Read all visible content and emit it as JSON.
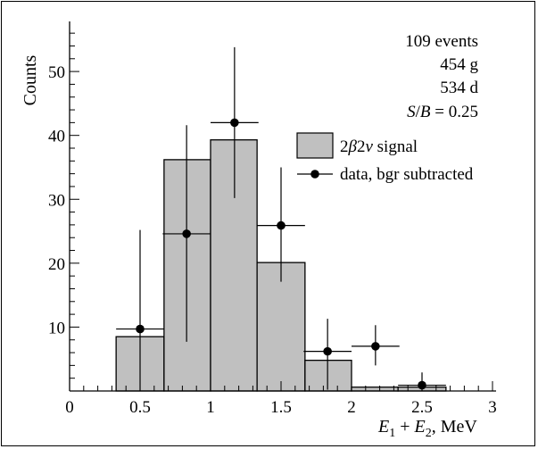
{
  "chart_data": {
    "type": "bar",
    "xlabel": "E₁ + E₂, MeV",
    "ylabel": "Counts",
    "xlim": [
      0,
      3
    ],
    "ylim": [
      0,
      57
    ],
    "xticks": [
      "0",
      "0.5",
      "1",
      "1.5",
      "2",
      "2.5",
      "3"
    ],
    "yticks": [
      "10",
      "20",
      "30",
      "40",
      "50"
    ],
    "grid": false,
    "legend_placement": "top-right",
    "annotations": [
      "109 events",
      "454 g",
      "534 d",
      "S/B = 0.25"
    ],
    "histogram": {
      "name": "2β2ν signal",
      "color": "#c0c0c0",
      "bin_edges": [
        0.33,
        0.67,
        1.0,
        1.33,
        1.67,
        2.0,
        2.33,
        2.67
      ],
      "values": [
        8.5,
        36.2,
        39.3,
        20.1,
        4.8,
        0.6,
        0.6
      ]
    },
    "series": [
      {
        "name": "data, bgr subtracted",
        "x": [
          0.5,
          0.83,
          1.17,
          1.5,
          1.83,
          2.17,
          2.5
        ],
        "y": [
          9.7,
          24.6,
          42.0,
          25.9,
          6.2,
          7.0,
          0.9
        ],
        "y_err_low": [
          9.7,
          16.9,
          11.8,
          8.8,
          6.0,
          3.0,
          0.8
        ],
        "y_err_high": [
          15.5,
          17.0,
          11.8,
          9.1,
          5.1,
          3.3,
          2.0
        ],
        "x_err": [
          0.17,
          0.17,
          0.17,
          0.17,
          0.17,
          0.17,
          0.17
        ]
      }
    ]
  }
}
